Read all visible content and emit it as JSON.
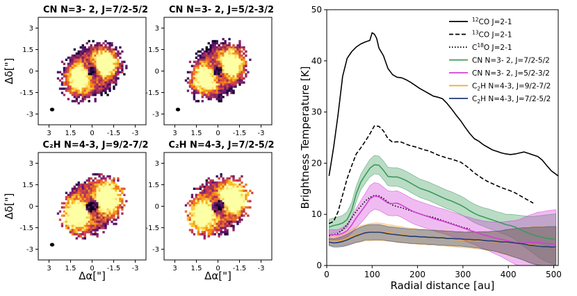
{
  "chart_data": [
    {
      "type": "heatmap",
      "panels": [
        {
          "title": "CN N=3- 2, J=7/2-5/2",
          "kind": "cn",
          "seed": 11,
          "has_beam": true
        },
        {
          "title": "CN N=3- 2, J=5/2-3/2",
          "kind": "cn",
          "seed": 23,
          "has_beam": true
        },
        {
          "title": "C₂H N=4-3, J=9/2-7/2",
          "kind": "c2h",
          "seed": 37,
          "has_beam": true
        },
        {
          "title": "C₂H N=4-3, J=7/2-5/2",
          "kind": "c2h",
          "seed": 51,
          "has_beam": false
        }
      ],
      "xlabel": "Δα[\"]",
      "ylabel": "Δδ[\"]",
      "xlim": [
        3.75,
        -3.75
      ],
      "ylim": [
        -3.75,
        3.75
      ],
      "xticks": [
        3,
        1.5,
        0,
        -1.5,
        -3
      ],
      "xtick_labels": [
        "3",
        "1.5",
        "0",
        "-1.5",
        "-3"
      ],
      "yticks": [
        3,
        1.5,
        0,
        -1.5,
        -3
      ],
      "ytick_labels": [
        "3",
        "1.5",
        "0",
        "-1.5",
        "-3"
      ],
      "colormap": "inferno"
    },
    {
      "type": "line",
      "xlabel": "Radial distance [au]",
      "ylabel": "Brightness Temperature [K]",
      "xlim": [
        0,
        510
      ],
      "ylim": [
        0,
        50
      ],
      "xticks": [
        0,
        100,
        200,
        300,
        400,
        500
      ],
      "yticks": [
        0,
        10,
        20,
        30,
        40,
        50
      ],
      "series": [
        {
          "name": "12CO J=2-1",
          "legend_sup": "12",
          "legend_rest": "CO J=2-1",
          "color": "#000000",
          "style": "solid",
          "x": [
            5,
            15,
            25,
            35,
            45,
            55,
            65,
            75,
            85,
            95,
            100,
            105,
            110,
            115,
            125,
            135,
            145,
            155,
            165,
            175,
            185,
            195,
            205,
            215,
            225,
            235,
            245,
            255,
            265,
            275,
            285,
            295,
            305,
            315,
            325,
            335,
            345,
            355,
            365,
            375,
            385,
            395,
            405,
            415,
            425,
            435,
            445,
            455,
            465,
            475,
            485,
            495,
            510
          ],
          "y": [
            17.5,
            23,
            29.5,
            37,
            40.5,
            41.8,
            42.7,
            43.3,
            43.7,
            44,
            45.5,
            45.2,
            44.4,
            42.5,
            41,
            38.5,
            37.3,
            36.8,
            36.7,
            36.3,
            35.8,
            35.2,
            34.6,
            34.1,
            33.6,
            33.1,
            32.9,
            32.6,
            31.7,
            30.6,
            29.4,
            28.3,
            27,
            25.8,
            24.8,
            24.3,
            23.6,
            23.1,
            22.6,
            22.3,
            22,
            21.8,
            21.7,
            21.8,
            22,
            22.2,
            21.9,
            21.6,
            21.3,
            20.6,
            19.5,
            18.5,
            17.5
          ]
        },
        {
          "name": "13CO J=2-1",
          "legend_sup": "13",
          "legend_rest": "CO J=2-1",
          "color": "#000000",
          "style": "dashed",
          "x": [
            5,
            15,
            25,
            35,
            45,
            55,
            65,
            75,
            85,
            95,
            105,
            115,
            125,
            135,
            145,
            155,
            165,
            175,
            185,
            195,
            205,
            215,
            225,
            235,
            245,
            255,
            265,
            275,
            285,
            295,
            305,
            315,
            325,
            335,
            345,
            355,
            365,
            375,
            385,
            395,
            405,
            415,
            425,
            435,
            445,
            455
          ],
          "y": [
            8.2,
            8.6,
            10.5,
            13.8,
            17,
            19.5,
            21.8,
            23,
            24.3,
            25.7,
            27.3,
            27.2,
            26.3,
            24.8,
            24.1,
            24.2,
            24.1,
            23.7,
            23.4,
            23.2,
            22.9,
            22.6,
            22.4,
            22,
            21.6,
            21.3,
            21,
            20.8,
            20.5,
            20.2,
            19.6,
            18.9,
            18.1,
            17.5,
            16.9,
            16.4,
            16,
            15.6,
            15.2,
            14.9,
            14.6,
            14.2,
            13.7,
            13.2,
            12.7,
            12.2
          ]
        },
        {
          "name": "C18O J=2-1",
          "legend_sup": "18",
          "legend_rest": "O J=2-1",
          "legend_pre": "C",
          "color": "#000000",
          "style": "dotted",
          "x": [
            5,
            15,
            25,
            35,
            45,
            55,
            65,
            75,
            85,
            95,
            105,
            115,
            125,
            135,
            145,
            155,
            165,
            175,
            185,
            195,
            205,
            215,
            225,
            235,
            245,
            255,
            265,
            275,
            285,
            295,
            305,
            315
          ],
          "y": [
            5.8,
            6,
            6.3,
            7,
            8,
            9.3,
            10.6,
            11.6,
            12.6,
            13.3,
            13.7,
            13.6,
            13.1,
            12.4,
            11.8,
            11.5,
            11.3,
            11,
            10.7,
            10.4,
            10.1,
            9.8,
            9.6,
            9.4,
            9.1,
            8.8,
            8.5,
            8.2,
            7.9,
            7.6,
            7.3,
            7.2
          ]
        },
        {
          "name": "CN N=3- 2, J=7/2-5/2",
          "color": "#3a9a5a",
          "style": "solid",
          "x": [
            5,
            15,
            25,
            35,
            45,
            55,
            65,
            75,
            85,
            95,
            105,
            115,
            125,
            135,
            145,
            155,
            165,
            175,
            185,
            195,
            205,
            215,
            225,
            235,
            245,
            255,
            265,
            275,
            285,
            295,
            305,
            315,
            325,
            335,
            345,
            355,
            365,
            375,
            385,
            395,
            405,
            415,
            425,
            435,
            445,
            455,
            465,
            475,
            485,
            495,
            505
          ],
          "y": [
            7.5,
            7.8,
            8,
            8.3,
            9,
            10.8,
            14,
            16.3,
            17.7,
            19,
            19.7,
            19.6,
            18.6,
            17.4,
            17.3,
            17.3,
            17,
            16.6,
            16.1,
            15.6,
            15.1,
            14.8,
            14.5,
            14.1,
            13.7,
            13.3,
            12.9,
            12.6,
            12.2,
            11.8,
            11.3,
            10.7,
            10.2,
            9.8,
            9.5,
            9.2,
            8.9,
            8.6,
            8.3,
            8,
            7.8,
            7.5,
            7.1,
            6.7,
            6.3,
            6,
            5.7,
            5.5,
            5.3,
            5.2,
            5.1
          ],
          "band": [
            1.5,
            1.5,
            1.5,
            1.5,
            1.5,
            1.5,
            1.5,
            1.5,
            1.6,
            1.7,
            1.8,
            1.8,
            1.8,
            1.8,
            1.8,
            1.8,
            1.8,
            1.8,
            1.8,
            1.8,
            1.8,
            1.8,
            1.8,
            1.8,
            1.8,
            1.8,
            1.8,
            1.8,
            1.8,
            1.8,
            1.8,
            1.8,
            1.8,
            1.8,
            1.8,
            1.9,
            1.9,
            1.9,
            2,
            2,
            2.2,
            2.4,
            2.7,
            3,
            3.3,
            3.6,
            4,
            4.3,
            4.6,
            4.8,
            5
          ]
        },
        {
          "name": "CN N=3- 2, J=5/2-3/2",
          "color": "#d23fd6",
          "style": "solid",
          "x": [
            5,
            15,
            25,
            35,
            45,
            55,
            65,
            75,
            85,
            95,
            105,
            115,
            125,
            135,
            145,
            155,
            165,
            175,
            185,
            195,
            205,
            215,
            225,
            235,
            245,
            255,
            265,
            275,
            285,
            295,
            305,
            315,
            325,
            335,
            345,
            355,
            365,
            375,
            385,
            395,
            405,
            415,
            425,
            435,
            445,
            455,
            465,
            475,
            485,
            495,
            505
          ],
          "y": [
            6,
            6,
            6,
            6.3,
            6.8,
            7.9,
            9.3,
            10.5,
            11.7,
            13,
            13.6,
            13.4,
            12.8,
            12.2,
            12.1,
            12.2,
            11.8,
            11.3,
            10.8,
            10.4,
            10.1,
            9.8,
            9.5,
            9.2,
            8.9,
            8.7,
            8.4,
            8.1,
            7.8,
            7.5,
            7.2,
            6.9,
            6.6,
            6.3,
            6,
            5.8,
            5.5,
            5.3,
            5.1,
            4.9,
            4.7,
            4.5,
            4.4,
            4.4,
            4.5,
            4.5,
            4.5,
            4.4,
            4.3,
            4.2,
            4.1
          ],
          "band": [
            1,
            1,
            1,
            1.1,
            1.3,
            1.6,
            1.9,
            2.2,
            2.4,
            2.6,
            2.6,
            2.6,
            2.5,
            2.4,
            2.4,
            2.4,
            2.4,
            2.4,
            2.4,
            2.4,
            2.4,
            2.4,
            2.4,
            2.4,
            2.4,
            2.4,
            2.4,
            2.4,
            2.4,
            2.4,
            2.4,
            2.5,
            2.5,
            2.6,
            2.7,
            2.8,
            3,
            3.2,
            3.4,
            3.7,
            4,
            4.3,
            4.6,
            5,
            5.3,
            5.6,
            5.9,
            6.1,
            6.4,
            6.6,
            6.8
          ]
        },
        {
          "name": "C2H N=4-3, J=9/2-7/2",
          "legend_pre": "C",
          "legend_sub": "2",
          "legend_rest": "H N=4-3, J=9/2-7/2",
          "color": "#f0a930",
          "style": "solid",
          "x": [
            5,
            15,
            25,
            35,
            45,
            55,
            65,
            75,
            85,
            95,
            105,
            115,
            125,
            135,
            145,
            155,
            165,
            175,
            185,
            195,
            205,
            215,
            225,
            235,
            245,
            255,
            265,
            275,
            285,
            295,
            305,
            315,
            325,
            335,
            345,
            355,
            365,
            375,
            385,
            395,
            405,
            415,
            425,
            435,
            445,
            455,
            465,
            475,
            485,
            495,
            505
          ],
          "y": [
            4.8,
            4.7,
            4.8,
            5,
            5.3,
            5.7,
            6,
            6.2,
            6.4,
            6.5,
            6.6,
            6.6,
            6.5,
            6.4,
            6.3,
            6.1,
            6,
            5.9,
            5.8,
            5.7,
            5.6,
            5.6,
            5.5,
            5.5,
            5.4,
            5.3,
            5.3,
            5.2,
            5.1,
            5,
            5,
            4.9,
            4.9,
            4.8,
            4.8,
            4.7,
            4.7,
            4.6,
            4.6,
            4.5,
            4.4,
            4.4,
            4.3,
            4.2,
            4.1,
            4,
            3.9,
            3.8,
            3.7,
            3.6,
            3.5
          ],
          "band": [
            0.8,
            0.9,
            1,
            1.1,
            1.2,
            1.4,
            1.5,
            1.6,
            1.6,
            1.7,
            1.7,
            1.7,
            1.7,
            1.6,
            1.6,
            1.6,
            1.6,
            1.5,
            1.5,
            1.5,
            1.5,
            1.5,
            1.5,
            1.5,
            1.5,
            1.5,
            1.5,
            1.5,
            1.5,
            1.5,
            1.5,
            1.5,
            1.6,
            1.6,
            1.7,
            1.8,
            1.9,
            2,
            2.2,
            2.4,
            2.6,
            2.8,
            3,
            3.2,
            3.4,
            3.6,
            3.7,
            3.8,
            3.9,
            4,
            4
          ]
        },
        {
          "name": "C2H N=4-3, J=7/2-5/2",
          "legend_pre": "C",
          "legend_sub": "2",
          "legend_rest": "H N=4-3, J=7/2-5/2",
          "color": "#1f3a78",
          "style": "solid",
          "x": [
            5,
            15,
            25,
            35,
            45,
            55,
            65,
            75,
            85,
            95,
            105,
            115,
            125,
            135,
            145,
            155,
            165,
            175,
            185,
            195,
            205,
            215,
            225,
            235,
            245,
            255,
            265,
            275,
            285,
            295,
            305,
            315,
            325,
            335,
            345,
            355,
            365,
            375,
            385,
            395,
            405,
            415,
            425,
            435,
            445,
            455,
            465,
            475,
            485,
            495,
            505
          ],
          "y": [
            4.6,
            4.4,
            4.5,
            4.7,
            5,
            5.4,
            5.8,
            6.1,
            6.4,
            6.5,
            6.5,
            6.5,
            6.4,
            6.2,
            6.1,
            6,
            5.9,
            5.8,
            5.7,
            5.7,
            5.6,
            5.6,
            5.5,
            5.5,
            5.4,
            5.4,
            5.3,
            5.3,
            5.2,
            5.2,
            5.1,
            5.1,
            5,
            5,
            4.9,
            4.8,
            4.8,
            4.7,
            4.6,
            4.6,
            4.5,
            4.4,
            4.3,
            4.2,
            4,
            3.9,
            3.8,
            3.7,
            3.7,
            3.6,
            3.6
          ],
          "band": [
            0.7,
            0.8,
            0.9,
            1,
            1.1,
            1.2,
            1.3,
            1.4,
            1.4,
            1.5,
            1.5,
            1.5,
            1.4,
            1.4,
            1.4,
            1.4,
            1.4,
            1.4,
            1.4,
            1.4,
            1.4,
            1.4,
            1.4,
            1.4,
            1.4,
            1.4,
            1.4,
            1.4,
            1.4,
            1.4,
            1.4,
            1.5,
            1.5,
            1.6,
            1.7,
            1.8,
            1.9,
            2,
            2.2,
            2.4,
            2.6,
            2.8,
            3,
            3.2,
            3.4,
            3.6,
            3.7,
            3.8,
            3.9,
            4,
            4
          ]
        }
      ]
    }
  ]
}
